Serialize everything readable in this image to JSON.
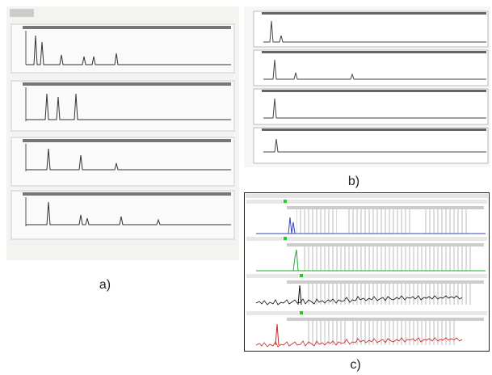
{
  "panels": {
    "a": {
      "label": "a)"
    },
    "b": {
      "label": "b)"
    },
    "c": {
      "label": "c)"
    }
  }
}
